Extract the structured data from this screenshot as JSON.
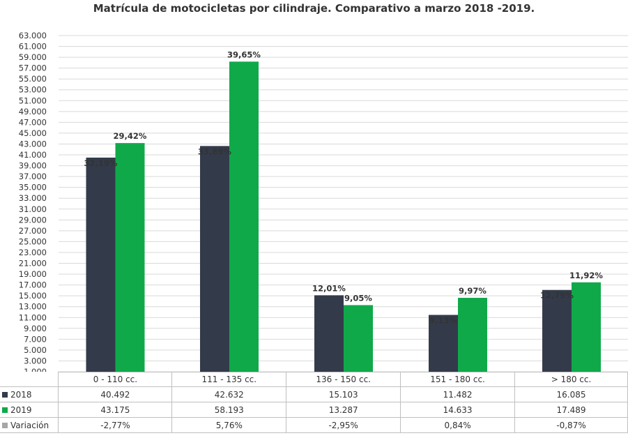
{
  "chart_data": {
    "type": "bar",
    "title": "Matrícula de motocicletas por cilindraje. Comparativo a marzo 2018 -2019.",
    "categories": [
      "0 - 110 cc.",
      "111 - 135 cc.",
      "136 - 150 cc.",
      "151 - 180 cc.",
      "> 180 cc."
    ],
    "series": [
      {
        "name": "2018",
        "color": "#333b4b",
        "values": [
          40492,
          42632,
          15103,
          11482,
          16085
        ],
        "value_labels": [
          "40.492",
          "42.632",
          "15.103",
          "11.482",
          "16.085"
        ],
        "share_labels": [
          "32,19%",
          "33,89%",
          "12,01%",
          "9,13%",
          "12,79%"
        ]
      },
      {
        "name": "2019",
        "color": "#10a94a",
        "values": [
          43175,
          58193,
          13287,
          14633,
          17489
        ],
        "value_labels": [
          "43.175",
          "58.193",
          "13.287",
          "14.633",
          "17.489"
        ],
        "share_labels": [
          "29,42%",
          "39,65%",
          "9,05%",
          "9,97%",
          "11,92%"
        ]
      }
    ],
    "variation": {
      "name": "Variación",
      "color": "#a6a6a6",
      "values": [
        -2.77,
        5.76,
        -2.95,
        0.84,
        -0.87
      ],
      "labels": [
        "-2,77%",
        "5,76%",
        "-2,95%",
        "0,84%",
        "-0,87%"
      ]
    },
    "ylim": [
      1000,
      63000
    ],
    "y_ticks": [
      "1.000",
      "3.000",
      "5.000",
      "7.000",
      "9.000",
      "11.000",
      "13.000",
      "15.000",
      "17.000",
      "19.000",
      "21.000",
      "23.000",
      "25.000",
      "27.000",
      "29.000",
      "31.000",
      "33.000",
      "35.000",
      "37.000",
      "39.000",
      "41.000",
      "43.000",
      "45.000",
      "47.000",
      "49.000",
      "51.000",
      "53.000",
      "55.000",
      "57.000",
      "59.000",
      "61.000",
      "63.000"
    ],
    "grid": true,
    "legend": "data-table"
  }
}
